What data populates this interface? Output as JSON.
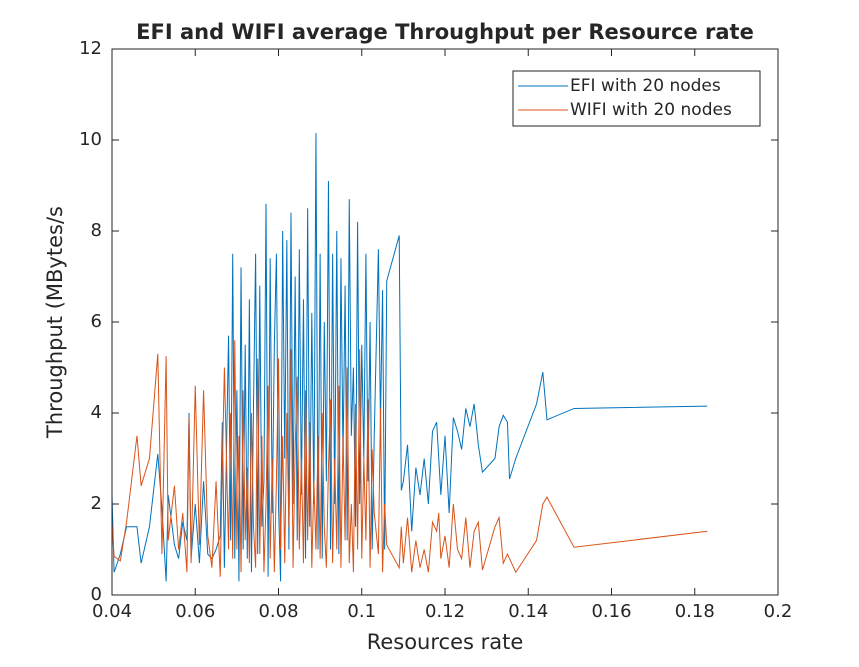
{
  "chart_data": {
    "type": "line",
    "title": "EFI and WIFI average Throughput per Resource rate",
    "xlabel": "Resources rate",
    "ylabel": "Throughput (MBytes/s",
    "x": [
      0.04,
      0.0405,
      0.042,
      0.0435,
      0.046,
      0.047,
      0.049,
      0.051,
      0.052,
      0.053,
      0.0535,
      0.055,
      0.056,
      0.057,
      0.058,
      0.0585,
      0.059,
      0.06,
      0.061,
      0.062,
      0.063,
      0.064,
      0.065,
      0.066,
      0.0665,
      0.067,
      0.068,
      0.0685,
      0.069,
      0.0695,
      0.07,
      0.0705,
      0.071,
      0.0715,
      0.072,
      0.0725,
      0.073,
      0.0735,
      0.074,
      0.0745,
      0.075,
      0.0755,
      0.076,
      0.0765,
      0.077,
      0.0775,
      0.078,
      0.0785,
      0.079,
      0.0795,
      0.08,
      0.0805,
      0.081,
      0.0815,
      0.082,
      0.0825,
      0.083,
      0.0835,
      0.084,
      0.0845,
      0.085,
      0.0855,
      0.086,
      0.0865,
      0.087,
      0.0875,
      0.088,
      0.0885,
      0.089,
      0.0895,
      0.09,
      0.0905,
      0.091,
      0.0915,
      0.092,
      0.0925,
      0.093,
      0.0935,
      0.094,
      0.0945,
      0.095,
      0.0955,
      0.096,
      0.0965,
      0.097,
      0.0975,
      0.098,
      0.0985,
      0.099,
      0.0995,
      0.1,
      0.1005,
      0.101,
      0.1015,
      0.102,
      0.1025,
      0.103,
      0.104,
      0.1045,
      0.105,
      0.1055,
      0.106,
      0.109,
      0.1095,
      0.11,
      0.111,
      0.112,
      0.113,
      0.114,
      0.115,
      0.116,
      0.117,
      0.118,
      0.1185,
      0.119,
      0.12,
      0.121,
      0.122,
      0.123,
      0.124,
      0.125,
      0.126,
      0.127,
      0.128,
      0.129,
      0.132,
      0.133,
      0.134,
      0.135,
      0.1355,
      0.137,
      0.142,
      0.1435,
      0.1445,
      0.151,
      0.183
    ],
    "series": [
      {
        "name": "EFI with 20 nodes",
        "color": "#0072bd",
        "values": [
          2.2,
          0.5,
          0.9,
          1.5,
          1.5,
          0.7,
          1.5,
          3.1,
          1.9,
          0.3,
          2.2,
          1.1,
          0.8,
          1.6,
          1.2,
          4.0,
          0.8,
          2.0,
          0.7,
          2.5,
          0.9,
          0.8,
          1.0,
          1.3,
          3.8,
          0.6,
          5.7,
          1.2,
          7.5,
          0.8,
          4.5,
          0.3,
          7.2,
          1.0,
          5.5,
          0.8,
          6.5,
          0.5,
          4.2,
          7.5,
          0.9,
          6.8,
          1.5,
          2.5,
          8.6,
          0.4,
          7.4,
          1.8,
          5.5,
          7.5,
          2.0,
          0.3,
          8.0,
          3.0,
          7.8,
          1.0,
          8.4,
          2.0,
          7.0,
          1.2,
          7.6,
          2.2,
          6.5,
          0.8,
          8.5,
          1.5,
          6.2,
          2.0,
          10.15,
          1.0,
          7.5,
          0.8,
          6.0,
          2.5,
          9.1,
          1.0,
          7.5,
          2.0,
          8.0,
          0.9,
          7.4,
          3.0,
          6.8,
          1.2,
          8.7,
          3.5,
          5.0,
          1.5,
          8.2,
          2.0,
          5.5,
          3.0,
          7.5,
          2.5,
          6.0,
          1.0,
          3.5,
          7.6,
          3.8,
          6.7,
          1.0,
          6.9,
          7.9,
          2.3,
          2.5,
          3.3,
          1.4,
          2.8,
          2.2,
          3.0,
          2.0,
          3.6,
          3.8,
          3.0,
          2.2,
          3.5,
          1.8,
          3.9,
          3.6,
          3.2,
          4.1,
          3.7,
          4.2,
          3.3,
          2.7,
          3.0,
          3.7,
          3.95,
          3.8,
          2.55,
          3.0,
          4.2,
          4.9,
          3.85,
          4.1,
          4.15
        ]
      },
      {
        "name": "WIFI with 20 nodes",
        "color": "#d95319",
        "values": [
          1.6,
          0.85,
          0.75,
          1.6,
          3.5,
          2.4,
          3.0,
          5.3,
          0.9,
          5.25,
          1.2,
          2.4,
          1.0,
          1.8,
          0.5,
          3.9,
          0.7,
          4.6,
          1.1,
          4.5,
          1.3,
          0.6,
          2.5,
          0.4,
          2.8,
          5.0,
          1.0,
          4.0,
          0.8,
          5.6,
          1.0,
          3.5,
          0.5,
          4.5,
          1.2,
          2.8,
          0.7,
          4.0,
          1.5,
          0.6,
          5.2,
          0.9,
          3.5,
          0.5,
          2.0,
          4.6,
          0.8,
          3.0,
          0.5,
          2.5,
          5.2,
          1.0,
          3.5,
          0.7,
          4.0,
          1.5,
          5.4,
          0.6,
          3.2,
          4.8,
          1.0,
          3.0,
          0.7,
          4.5,
          1.2,
          3.8,
          0.6,
          2.5,
          1.0,
          3.5,
          0.8,
          4.0,
          1.5,
          0.6,
          2.8,
          4.3,
          0.7,
          3.0,
          1.0,
          4.6,
          0.6,
          3.5,
          1.2,
          5.0,
          0.7,
          2.0,
          0.5,
          4.2,
          1.0,
          5.4,
          0.8,
          3.0,
          1.2,
          4.3,
          0.6,
          3.2,
          1.8,
          0.9,
          4.1,
          0.5,
          2.0,
          1.1,
          0.6,
          1.5,
          0.7,
          1.7,
          0.5,
          1.2,
          0.6,
          1.0,
          0.5,
          1.6,
          1.4,
          1.8,
          0.8,
          1.3,
          0.6,
          2.0,
          1.0,
          0.8,
          1.7,
          0.6,
          1.4,
          1.6,
          0.55,
          1.5,
          1.7,
          0.7,
          0.9,
          0.8,
          0.5,
          1.2,
          2.0,
          2.15,
          1.05,
          1.4
        ]
      }
    ],
    "xlim": [
      0.04,
      0.2
    ],
    "xticks": [
      0.04,
      0.06,
      0.08,
      0.1,
      0.12,
      0.14,
      0.16,
      0.18,
      0.2
    ],
    "ylim": [
      0,
      12
    ],
    "yticks": [
      0,
      2,
      4,
      6,
      8,
      10,
      12
    ],
    "legend": "upper right"
  }
}
